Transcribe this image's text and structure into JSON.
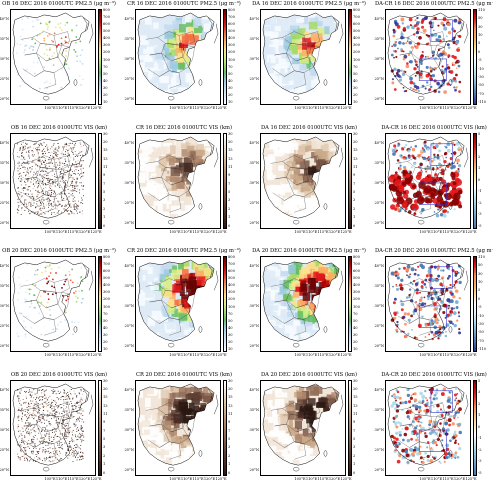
{
  "panels": [
    {
      "title": "OB 16 DEC 2016 0100UTC PM2.5 (μg m⁻³)",
      "kind": "ob-pm",
      "cbar": "pm"
    },
    {
      "title": "CR 16 DEC 2016 0100UTC PM2.5 (μg m⁻³)",
      "kind": "model-pm-low",
      "cbar": "pm"
    },
    {
      "title": "DA 16 DEC 2016 0100UTC PM2.5 (μg m⁻³)",
      "kind": "model-pm-low",
      "cbar": "pm"
    },
    {
      "title": "DA-CR 16 DEC 2016 0100UTC PM2.5 (μg m⁻³)",
      "kind": "diff-pm",
      "cbar": "pmdiff"
    },
    {
      "title": "OB 16 DEC 2016 0100UTC VIS (km)",
      "kind": "ob-vis",
      "cbar": "vis"
    },
    {
      "title": "CR 16 DEC 2016 0100UTC VIS (km)",
      "kind": "model-vis-low",
      "cbar": "vis"
    },
    {
      "title": "DA 16 DEC 2016 0100UTC VIS (km)",
      "kind": "model-vis-low",
      "cbar": "vis"
    },
    {
      "title": "DA-CR 16 DEC 2016 0100UTC VIS (km)",
      "kind": "diff-vis",
      "cbar": "visdiff"
    },
    {
      "title": "OB 20 DEC 2016 0100UTC PM2.5 (μg m⁻³)",
      "kind": "ob-pm",
      "cbar": "pm"
    },
    {
      "title": "CR 20 DEC 2016 0100UTC PM2.5 (μg m⁻³)",
      "kind": "model-pm-high",
      "cbar": "pm"
    },
    {
      "title": "DA 20 DEC 2016 0100UTC PM2.5 (μg m⁻³)",
      "kind": "model-pm-high",
      "cbar": "pm"
    },
    {
      "title": "DA-CR 20 DEC 2016 0100UTC PM2.5 (μg m⁻³)",
      "kind": "diff-pm",
      "cbar": "pmdiff"
    },
    {
      "title": "OB 20 DEC 2016 0100UTC VIS (km)",
      "kind": "ob-vis",
      "cbar": "vis"
    },
    {
      "title": "CR 20 DEC 2016 0100UTC VIS (km)",
      "kind": "model-vis-high",
      "cbar": "vis"
    },
    {
      "title": "DA 20 DEC 2016 0100UTC VIS (km)",
      "kind": "model-vis-high",
      "cbar": "vis"
    },
    {
      "title": "DA-CR 20 DEC 2016 0100UTC VIS (km)",
      "kind": "diff-vis",
      "cbar": "visdiff"
    }
  ],
  "colorbars": {
    "pm": {
      "ticks": [
        "800",
        "700",
        "600",
        "500",
        "400",
        "300",
        "200",
        "100",
        "70",
        "50",
        "40",
        "30",
        "20",
        "10"
      ],
      "colors": [
        "#6b0000",
        "#b30000",
        "#e31a1c",
        "#f46d43",
        "#fdae61",
        "#fee08b",
        "#d9ef8b",
        "#a6d96a",
        "#66bd63",
        "#9ecae1",
        "#c6dbef",
        "#deebf7",
        "#f7fbff"
      ]
    },
    "pmdiff": {
      "ticks": [
        "110",
        "50",
        "30",
        "10",
        "5",
        "0",
        "-5",
        "-10",
        "-30",
        "-50",
        "-70",
        "-110"
      ],
      "colors": [
        "#8b0000",
        "#e31a1c",
        "#fc8d59",
        "#fdae61",
        "#fee090",
        "#ffffff",
        "#e0f3f8",
        "#abd9e9",
        "#74add1",
        "#4575b4",
        "#313695"
      ]
    },
    "vis": {
      "ticks": [
        "30",
        "20",
        "15",
        "13",
        "11",
        "9",
        "7",
        "5",
        "3",
        "2",
        "1",
        "0"
      ],
      "colors": [
        "#ffffff",
        "#f2e6d9",
        "#e0c9b0",
        "#c9a98a",
        "#b08a70",
        "#94705a",
        "#7a5646",
        "#5e3e33",
        "#442a22",
        "#2b1712"
      ]
    },
    "visdiff": {
      "ticks": [
        "5",
        "3",
        "2",
        "1",
        "0",
        "-1",
        "-2",
        "-3",
        "-5"
      ],
      "colors": [
        "#8b0000",
        "#e31a1c",
        "#fc8d59",
        "#fee090",
        "#ffffff",
        "#abd9e9",
        "#74add1",
        "#4575b4"
      ]
    }
  },
  "axes": {
    "lat_labels": [
      "40°N",
      "35°N",
      "30°N",
      "25°N",
      "20°N"
    ],
    "lon_labels": [
      "105°E",
      "110°E",
      "115°E",
      "120°E",
      "125°E"
    ]
  }
}
